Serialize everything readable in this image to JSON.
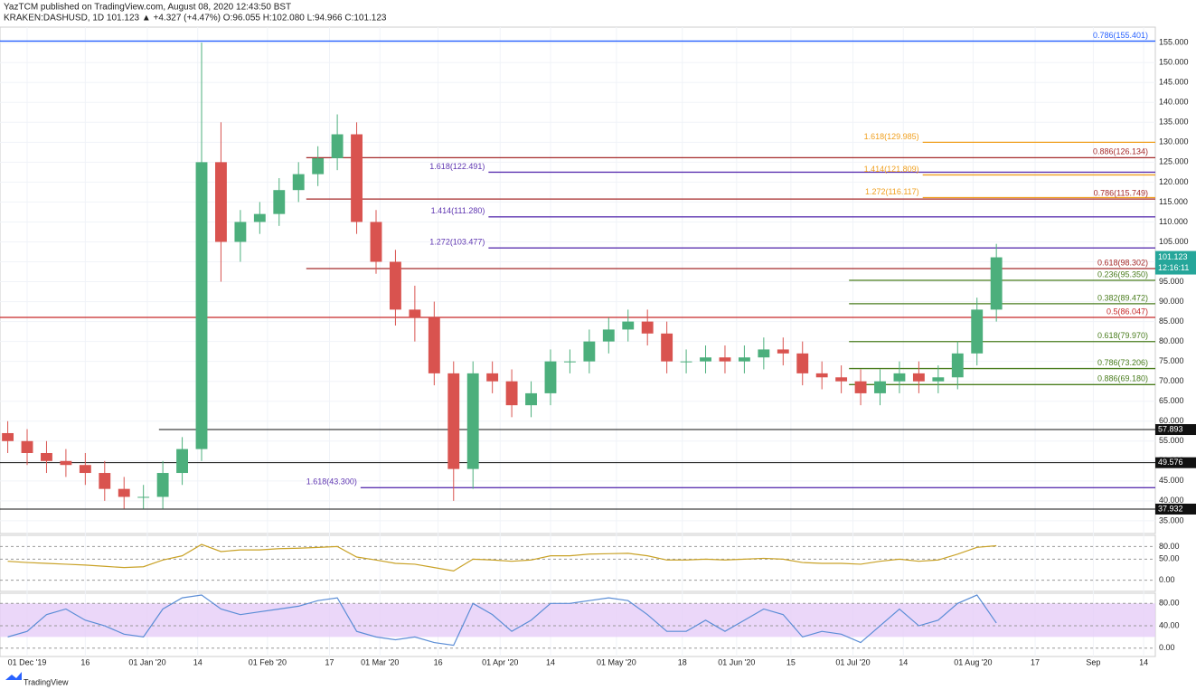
{
  "header": {
    "publisher_line": "YazTCM published on TradingView.com, August 08, 2020 12:43:50 BST",
    "symbol_line": "KRAKEN:DASHUSD, 1D  101.123 ▲ +4.327 (+4.47%) O:96.055 H:102.080 L:94.966 C:101.123"
  },
  "footer": {
    "brand": "TradingView"
  },
  "chart_data": {
    "type": "candlestick",
    "up_color": "#4caf7c",
    "down_color": "#d9534f",
    "x": [
      -5,
      0,
      5,
      10,
      15,
      20,
      25,
      30,
      35,
      40,
      45,
      50,
      55,
      60,
      65,
      70,
      75,
      80,
      85,
      90,
      95,
      100,
      105,
      110,
      115,
      120,
      125,
      130,
      135,
      140,
      145,
      150,
      155,
      160,
      165,
      170,
      175,
      180,
      185,
      190,
      195,
      200,
      205,
      210,
      215,
      220,
      225,
      230,
      235,
      240,
      245,
      250
    ],
    "open": [
      57,
      55,
      52,
      50,
      49,
      47,
      43,
      41,
      41,
      47,
      53,
      125,
      105,
      110,
      112,
      118,
      122,
      126,
      132,
      110,
      100,
      88,
      86,
      72,
      48,
      72,
      70,
      64,
      67,
      75,
      75,
      80,
      83,
      85,
      82,
      75,
      75,
      76,
      75,
      76,
      78,
      77,
      72,
      71,
      70,
      67,
      70,
      72,
      70,
      71,
      77,
      88
    ],
    "high": [
      60,
      58,
      55,
      53,
      52,
      50,
      46,
      44,
      50,
      56,
      155,
      135,
      113,
      115,
      121,
      125,
      129,
      137,
      135,
      113,
      103,
      94,
      90,
      75,
      75,
      75,
      73,
      70,
      78,
      78,
      83,
      86,
      88,
      88,
      85,
      78,
      79,
      79,
      79,
      81,
      81,
      80,
      75,
      74,
      73,
      73,
      75,
      75,
      74,
      80,
      91,
      104.5
    ],
    "low": [
      52,
      49,
      47,
      46,
      44,
      40,
      38,
      38,
      38,
      44,
      50,
      95,
      100,
      107,
      109,
      115,
      119,
      123,
      107,
      97,
      84,
      80,
      69,
      40,
      43,
      67,
      61,
      61,
      64,
      72,
      72,
      77,
      80,
      79,
      72,
      72,
      72,
      72,
      72,
      73,
      74,
      69,
      68,
      67,
      64,
      64,
      67,
      67,
      67,
      68,
      74,
      85
    ],
    "close": [
      55,
      52,
      50,
      49,
      47,
      43,
      41,
      41,
      47,
      53,
      125,
      105,
      110,
      112,
      118,
      122,
      126,
      132,
      110,
      100,
      88,
      86,
      72,
      48,
      72,
      70,
      64,
      67,
      75,
      75,
      80,
      83,
      85,
      82,
      75,
      75,
      76,
      75,
      76,
      78,
      77,
      72,
      71,
      70,
      67,
      70,
      72,
      70,
      71,
      77,
      88,
      101.123
    ],
    "xlim": [
      -7,
      291
    ],
    "ylim": [
      31.8,
      158.9
    ],
    "xticks": [
      {
        "value": 0,
        "label": "01 Dec '19"
      },
      {
        "value": 15,
        "label": "16"
      },
      {
        "value": 31,
        "label": "01 Jan '20"
      },
      {
        "value": 44,
        "label": "14"
      },
      {
        "value": 62,
        "label": "01 Feb '20"
      },
      {
        "value": 78,
        "label": "17"
      },
      {
        "value": 91,
        "label": "01 Mar '20"
      },
      {
        "value": 106,
        "label": "16"
      },
      {
        "value": 122,
        "label": "01 Apr '20"
      },
      {
        "value": 135,
        "label": "14"
      },
      {
        "value": 152,
        "label": "01 May '20"
      },
      {
        "value": 169,
        "label": "18"
      },
      {
        "value": 183,
        "label": "01 Jun '20"
      },
      {
        "value": 197,
        "label": "15"
      },
      {
        "value": 213,
        "label": "01 Jul '20"
      },
      {
        "value": 226,
        "label": "14"
      },
      {
        "value": 244,
        "label": "01 Aug '20"
      },
      {
        "value": 260,
        "label": "17"
      },
      {
        "value": 275,
        "label": "Sep"
      },
      {
        "value": 288,
        "label": "14"
      }
    ],
    "yticks": [
      {
        "value": 35,
        "label": "35.000"
      },
      {
        "value": 40,
        "label": "40.000"
      },
      {
        "value": 45,
        "label": "45.000"
      },
      {
        "value": 50,
        "label": "50.000"
      },
      {
        "value": 55,
        "label": "55.000"
      },
      {
        "value": 60,
        "label": "60.000"
      },
      {
        "value": 65,
        "label": "65.000"
      },
      {
        "value": 70,
        "label": "70.000"
      },
      {
        "value": 75,
        "label": "75.000"
      },
      {
        "value": 80,
        "label": "80.000"
      },
      {
        "value": 85,
        "label": "85.000"
      },
      {
        "value": 90,
        "label": "90.000"
      },
      {
        "value": 95,
        "label": "95.000"
      },
      {
        "value": 100,
        "label": "100.000"
      },
      {
        "value": 105,
        "label": "105.000"
      },
      {
        "value": 110,
        "label": "110.000"
      },
      {
        "value": 115,
        "label": "115.000"
      },
      {
        "value": 120,
        "label": "120.000"
      },
      {
        "value": 125,
        "label": "125.000"
      },
      {
        "value": 130,
        "label": "130.000"
      },
      {
        "value": 135,
        "label": "135.000"
      },
      {
        "value": 140,
        "label": "140.000"
      },
      {
        "value": 145,
        "label": "145.000"
      },
      {
        "value": 150,
        "label": "150.000"
      },
      {
        "value": 155,
        "label": "155.000"
      }
    ],
    "levels": [
      {
        "label": "0.786(155.401)",
        "value": 155.401,
        "x_start": -7,
        "color": "#2962ff",
        "label_side": "end"
      },
      {
        "label": "1.618(129.985)",
        "value": 129.985,
        "x_start": 231,
        "color": "#f0a020",
        "label_side": "start"
      },
      {
        "label": "0.886(126.134)",
        "value": 126.134,
        "x_start": 72,
        "color": "#a52a2a",
        "label_side": "end"
      },
      {
        "label": "1.618(122.491)",
        "value": 122.491,
        "x_start": 119,
        "color": "#5e35b1",
        "label_side": "start"
      },
      {
        "label": "1.414(121.809)",
        "value": 121.809,
        "x_start": 231,
        "color": "#f0a020",
        "label_side": "start"
      },
      {
        "label": "1.272(116.117)",
        "value": 116.117,
        "x_start": 231,
        "color": "#f0a020",
        "label_side": "start"
      },
      {
        "label": "0.786(115.749)",
        "value": 115.749,
        "x_start": 72,
        "color": "#a52a2a",
        "label_side": "end"
      },
      {
        "label": "1.414(111.280)",
        "value": 111.28,
        "x_start": 119,
        "color": "#5e35b1",
        "label_side": "start"
      },
      {
        "label": "1.272(103.477)",
        "value": 103.477,
        "x_start": 119,
        "color": "#5e35b1",
        "label_side": "start"
      },
      {
        "label": "0.618(98.302)",
        "value": 98.302,
        "x_start": 72,
        "color": "#a52a2a",
        "label_side": "end"
      },
      {
        "label": "0.236(95.350)",
        "value": 95.35,
        "x_start": 212,
        "color": "#4a7d1e",
        "label_side": "end"
      },
      {
        "label": "0.382(89.472)",
        "value": 89.472,
        "x_start": 212,
        "color": "#4a7d1e",
        "label_side": "end"
      },
      {
        "label": "0.5(86.047)",
        "value": 86.047,
        "x_start": -7,
        "color": "#c62828",
        "label_side": "end"
      },
      {
        "label": "0.618(79.970)",
        "value": 79.97,
        "x_start": 212,
        "color": "#4a7d1e",
        "label_side": "end"
      },
      {
        "label": "0.786(73.206)",
        "value": 73.206,
        "x_start": 212,
        "color": "#4a7d1e",
        "label_side": "end"
      },
      {
        "label": "0.886(69.180)",
        "value": 69.18,
        "x_start": 212,
        "color": "#4a7d1e",
        "label_side": "end"
      },
      {
        "label": "1.618(43.300)",
        "value": 43.3,
        "x_start": 86,
        "color": "#5e35b1",
        "label_side": "start"
      }
    ],
    "supports": [
      {
        "value": 57.893,
        "x_start": 34
      },
      {
        "value": 49.576,
        "x_start": -7
      },
      {
        "value": 37.932,
        "x_start": -7
      }
    ],
    "last_price": 101.123,
    "countdown": "12:16:11",
    "last_color": "#26a69a",
    "rsi": {
      "values": [
        45,
        42,
        40,
        38,
        36,
        33,
        30,
        32,
        48,
        58,
        85,
        68,
        72,
        72,
        75,
        76,
        78,
        80,
        55,
        48,
        40,
        38,
        30,
        22,
        50,
        48,
        45,
        48,
        58,
        58,
        62,
        63,
        64,
        58,
        48,
        48,
        50,
        48,
        50,
        52,
        50,
        42,
        40,
        40,
        38,
        45,
        50,
        45,
        48,
        62,
        78,
        82
      ],
      "color": "#c9a227",
      "ylim": [
        -26.7,
        106.7
      ],
      "yticks": [
        {
          "value": 80,
          "label": "80.00"
        },
        {
          "value": 50,
          "label": "50.00"
        },
        {
          "value": 0,
          "label": "0.00"
        }
      ]
    },
    "stoch": {
      "values": [
        20,
        30,
        60,
        70,
        50,
        40,
        25,
        20,
        70,
        90,
        95,
        70,
        60,
        65,
        70,
        75,
        85,
        90,
        30,
        20,
        15,
        20,
        10,
        5,
        80,
        60,
        30,
        50,
        80,
        80,
        85,
        90,
        85,
        60,
        30,
        30,
        50,
        30,
        50,
        70,
        60,
        20,
        30,
        25,
        10,
        40,
        70,
        40,
        50,
        80,
        95,
        45
      ],
      "color": "#5b8dd6",
      "band_color": "#e6cdf7",
      "band": [
        20,
        80
      ],
      "ylim": [
        -15,
        98.3
      ],
      "yticks": [
        {
          "value": 80,
          "label": "80.00"
        },
        {
          "value": 40,
          "label": "40.00"
        },
        {
          "value": 0,
          "label": "0.00"
        }
      ]
    }
  }
}
